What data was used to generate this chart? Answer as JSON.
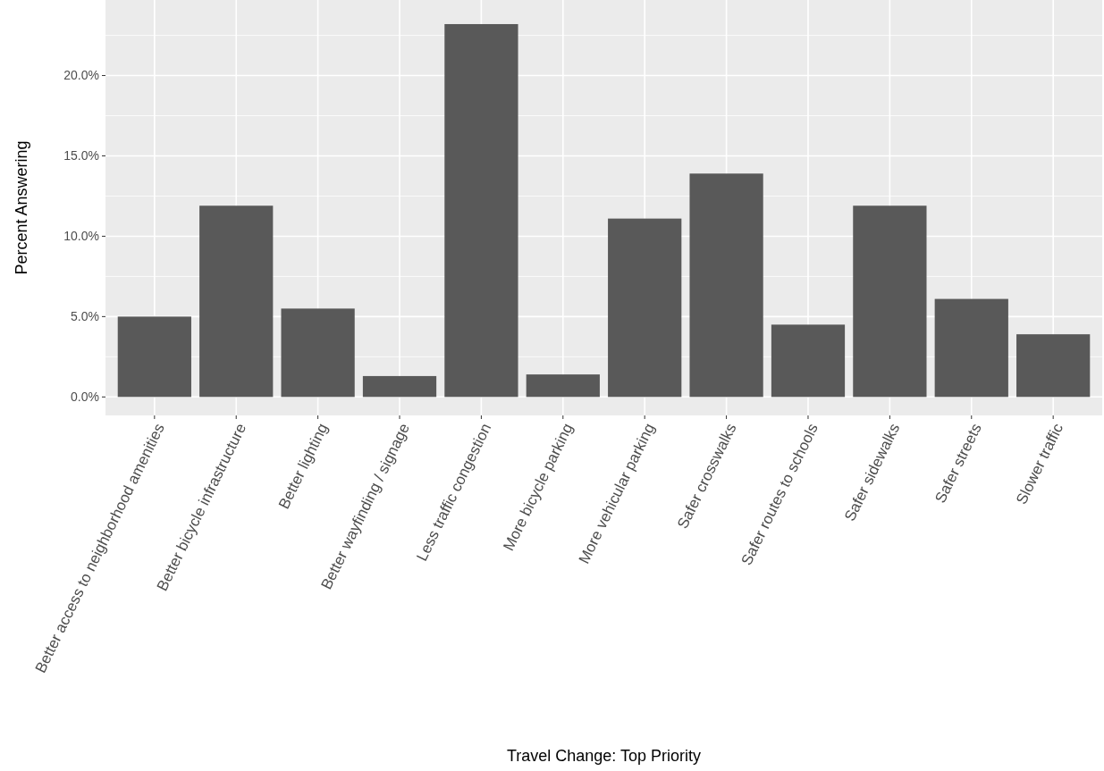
{
  "chart_data": {
    "type": "bar",
    "xlabel": "Travel Change: Top Priority",
    "ylabel": "Percent Answering",
    "categories": [
      "Better access to neighborhood amenities",
      "Better bicycle infrastructure",
      "Better lighting",
      "Better wayfinding / signage",
      "Less traffic congestion",
      "More bicycle parking",
      "More vehicular parking",
      "Safer crosswalks",
      "Safer routes to schools",
      "Safer sidewalks",
      "Safer streets",
      "Slower traffic"
    ],
    "values": [
      5.0,
      11.9,
      5.5,
      1.3,
      23.2,
      1.4,
      11.1,
      13.9,
      4.5,
      11.9,
      6.1,
      3.9
    ],
    "color": "#595959",
    "ylim": [
      -1.15,
      24.7
    ],
    "yticks": [
      {
        "value": 0,
        "label": "0.0%"
      },
      {
        "value": 2.5,
        "label": null
      },
      {
        "value": 5,
        "label": "5.0%"
      },
      {
        "value": 7.5,
        "label": null
      },
      {
        "value": 10,
        "label": "10.0%"
      },
      {
        "value": 12.5,
        "label": null
      },
      {
        "value": 15,
        "label": "15.0%"
      },
      {
        "value": 17.5,
        "label": null
      },
      {
        "value": 20,
        "label": "20.0%"
      },
      {
        "value": 22.5,
        "label": null
      }
    ],
    "grid": true
  }
}
